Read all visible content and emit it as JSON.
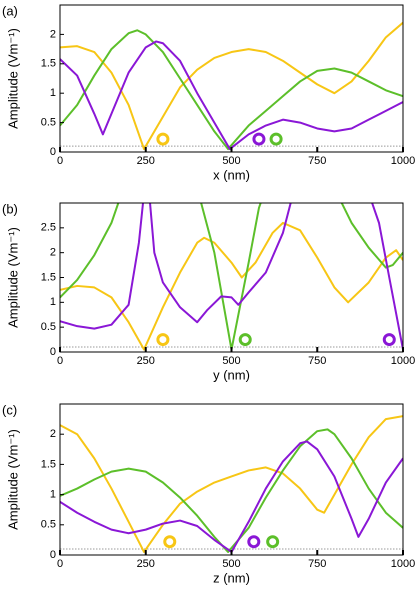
{
  "chart_data": [
    {
      "type": "line",
      "panel_label": "(a)",
      "xlabel": "x (nm)",
      "ylabel": "Amplitude (Vm⁻¹)",
      "xlim": [
        0,
        1000
      ],
      "ylim": [
        0,
        2.5
      ],
      "xticks": [
        0,
        250,
        500,
        750,
        1000
      ],
      "yticks": [
        0,
        0.5,
        1,
        1.5,
        2
      ],
      "reference_line": 0.1,
      "series": [
        {
          "color": "#f7c615",
          "x": [
            0,
            50,
            100,
            150,
            200,
            245,
            300,
            350,
            400,
            450,
            500,
            550,
            600,
            650,
            700,
            750,
            800,
            850,
            900,
            950,
            1000
          ],
          "values": [
            1.78,
            1.8,
            1.7,
            1.35,
            0.8,
            0.05,
            0.6,
            1.1,
            1.4,
            1.6,
            1.7,
            1.75,
            1.7,
            1.55,
            1.35,
            1.15,
            1.0,
            1.2,
            1.55,
            1.95,
            2.2
          ]
        },
        {
          "color": "#5cbf2a",
          "x": [
            0,
            50,
            100,
            150,
            200,
            225,
            250,
            300,
            350,
            400,
            450,
            490,
            550,
            600,
            650,
            700,
            750,
            800,
            850,
            900,
            950,
            1000
          ],
          "values": [
            0.45,
            0.8,
            1.3,
            1.75,
            2.02,
            2.07,
            2.0,
            1.7,
            1.25,
            0.8,
            0.35,
            0.05,
            0.45,
            0.7,
            0.95,
            1.2,
            1.38,
            1.42,
            1.35,
            1.2,
            1.05,
            0.95
          ]
        },
        {
          "color": "#8a17d6",
          "x": [
            0,
            50,
            100,
            125,
            150,
            200,
            250,
            280,
            300,
            350,
            400,
            450,
            495,
            550,
            600,
            650,
            700,
            750,
            800,
            850,
            900,
            950,
            1000
          ],
          "values": [
            1.58,
            1.3,
            0.65,
            0.3,
            0.65,
            1.35,
            1.78,
            1.88,
            1.85,
            1.55,
            1.0,
            0.5,
            0.05,
            0.3,
            0.45,
            0.55,
            0.5,
            0.4,
            0.35,
            0.4,
            0.55,
            0.7,
            0.85
          ]
        }
      ],
      "markers": [
        {
          "x": 300,
          "y": 0.22,
          "color": "#f7c615"
        },
        {
          "x": 580,
          "y": 0.22,
          "color": "#8a17d6"
        },
        {
          "x": 630,
          "y": 0.22,
          "color": "#5cbf2a"
        }
      ]
    },
    {
      "type": "line",
      "panel_label": "(b)",
      "xlabel": "y (nm)",
      "ylabel": "Amplitude (Vm⁻¹)",
      "xlim": [
        0,
        1000
      ],
      "ylim": [
        0,
        3
      ],
      "xticks": [
        0,
        250,
        500,
        750,
        1000
      ],
      "yticks": [
        0,
        0.5,
        1,
        1.5,
        2,
        2.5
      ],
      "reference_line": 0.1,
      "series": [
        {
          "color": "#f7c615",
          "x": [
            0,
            50,
            100,
            150,
            200,
            245,
            300,
            350,
            400,
            420,
            450,
            500,
            530,
            570,
            620,
            650,
            700,
            750,
            800,
            840,
            900,
            950,
            980,
            1000
          ],
          "values": [
            1.25,
            1.33,
            1.3,
            1.1,
            0.6,
            0.05,
            0.9,
            1.6,
            2.2,
            2.3,
            2.2,
            1.8,
            1.5,
            1.8,
            2.4,
            2.6,
            2.45,
            1.9,
            1.3,
            1.0,
            1.4,
            1.9,
            2.05,
            1.85
          ]
        },
        {
          "color": "#5cbf2a",
          "x": [
            0,
            50,
            100,
            150,
            180,
            200,
            400,
            450,
            500,
            550,
            580,
            600,
            650,
            800,
            850,
            900,
            950,
            970,
            1000
          ],
          "values": [
            1.1,
            1.45,
            1.95,
            2.6,
            3.2,
            null,
            3.3,
            2.0,
            0.05,
            1.8,
            2.9,
            3.3,
            null,
            3.3,
            2.6,
            2.1,
            1.7,
            1.75,
            2.0
          ]
        },
        {
          "color": "#8a17d6",
          "x": [
            0,
            50,
            100,
            150,
            200,
            230,
            245,
            250,
            260,
            275,
            300,
            350,
            400,
            430,
            470,
            500,
            520,
            550,
            600,
            650,
            680,
            700,
            900,
            930,
            960,
            1000
          ],
          "values": [
            0.62,
            0.52,
            0.47,
            0.55,
            0.95,
            2.2,
            3.2,
            null,
            3.2,
            2.0,
            1.4,
            0.9,
            0.6,
            0.85,
            1.12,
            1.1,
            0.95,
            1.2,
            1.6,
            2.4,
            3.2,
            null,
            3.2,
            2.6,
            1.5,
            0.05
          ]
        }
      ],
      "markers": [
        {
          "x": 300,
          "y": 0.25,
          "color": "#f7c615"
        },
        {
          "x": 540,
          "y": 0.25,
          "color": "#5cbf2a"
        },
        {
          "x": 960,
          "y": 0.25,
          "color": "#8a17d6"
        }
      ]
    },
    {
      "type": "line",
      "panel_label": "(c)",
      "xlabel": "z (nm)",
      "ylabel": "Amplitude (Vm⁻¹)",
      "xlim": [
        0,
        1000
      ],
      "ylim": [
        0,
        2.5
      ],
      "xticks": [
        0,
        250,
        500,
        750,
        1000
      ],
      "yticks": [
        0,
        0.5,
        1,
        1.5,
        2
      ],
      "reference_line": 0.1,
      "series": [
        {
          "color": "#f7c615",
          "x": [
            0,
            50,
            100,
            150,
            200,
            245,
            300,
            350,
            400,
            450,
            500,
            550,
            600,
            650,
            700,
            750,
            770,
            800,
            850,
            900,
            950,
            1000
          ],
          "values": [
            2.15,
            2.0,
            1.6,
            1.1,
            0.55,
            0.05,
            0.5,
            0.85,
            1.05,
            1.2,
            1.3,
            1.4,
            1.45,
            1.35,
            1.1,
            0.75,
            0.7,
            1.0,
            1.5,
            1.95,
            2.25,
            2.3
          ]
        },
        {
          "color": "#5cbf2a",
          "x": [
            0,
            50,
            100,
            150,
            200,
            250,
            300,
            350,
            400,
            450,
            490,
            550,
            600,
            650,
            700,
            750,
            780,
            800,
            850,
            900,
            950,
            1000
          ],
          "values": [
            0.98,
            1.1,
            1.25,
            1.38,
            1.43,
            1.38,
            1.2,
            0.95,
            0.65,
            0.3,
            0.05,
            0.45,
            0.95,
            1.4,
            1.8,
            2.05,
            2.08,
            2.0,
            1.6,
            1.1,
            0.7,
            0.45
          ]
        },
        {
          "color": "#8a17d6",
          "x": [
            0,
            50,
            100,
            150,
            200,
            250,
            300,
            350,
            400,
            450,
            500,
            550,
            600,
            650,
            700,
            720,
            750,
            800,
            850,
            870,
            900,
            950,
            1000
          ],
          "values": [
            0.88,
            0.7,
            0.55,
            0.42,
            0.36,
            0.42,
            0.52,
            0.57,
            0.48,
            0.25,
            0.05,
            0.55,
            1.1,
            1.55,
            1.85,
            1.88,
            1.75,
            1.3,
            0.6,
            0.3,
            0.6,
            1.2,
            1.6
          ]
        }
      ],
      "markers": [
        {
          "x": 320,
          "y": 0.22,
          "color": "#f7c615"
        },
        {
          "x": 565,
          "y": 0.22,
          "color": "#8a17d6"
        },
        {
          "x": 620,
          "y": 0.22,
          "color": "#5cbf2a"
        }
      ]
    }
  ]
}
